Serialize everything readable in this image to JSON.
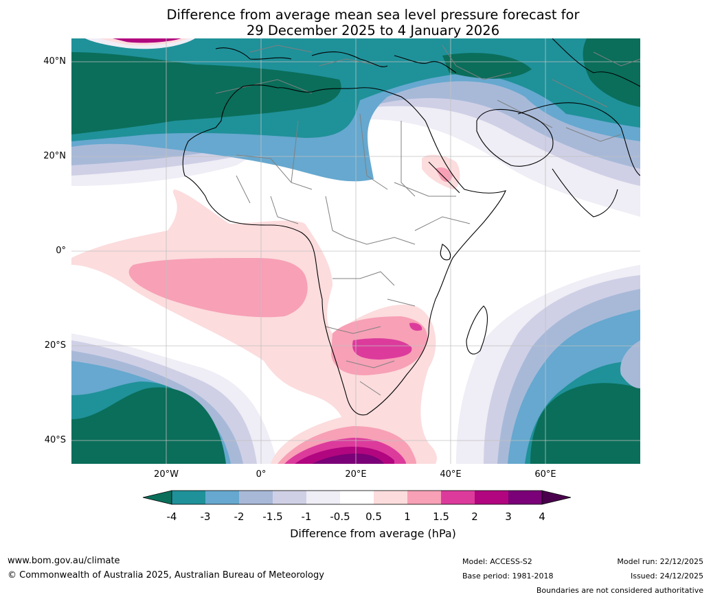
{
  "title": {
    "line1": "Difference from average mean sea level pressure forecast for",
    "line2": "29 December 2025 to 4 January 2026"
  },
  "map": {
    "lat_labels": [
      "40°N",
      "20°N",
      "0°",
      "20°S",
      "40°S"
    ],
    "lon_labels": [
      "20°W",
      "0°",
      "20°E",
      "40°E",
      "60°E"
    ],
    "colors": {
      "n4": "#0a6e5a",
      "n3": "#1f9199",
      "n2": "#66a8cf",
      "n15": "#a8b9d8",
      "n1": "#cfd0e6",
      "n05": "#efedf5",
      "z": "#ffffff",
      "p05": "#fcdcdd",
      "p1": "#f7a0b6",
      "p15": "#dc3b9c",
      "p2": "#b1067f",
      "p3": "#7a0177",
      "p4": "#4a004d",
      "coast": "#000000",
      "border": "#808080",
      "grid": "#c0c0c0"
    }
  },
  "colorbar": {
    "ticks": [
      "-4",
      "-3",
      "-2",
      "-1.5",
      "-1",
      "-0.5",
      "0.5",
      "1",
      "1.5",
      "2",
      "3",
      "4"
    ],
    "colors": [
      "#0a6e5a",
      "#1f9199",
      "#66a8cf",
      "#a8b9d8",
      "#cfd0e6",
      "#efedf5",
      "#ffffff",
      "#fcdcdd",
      "#f7a0b6",
      "#dc3b9c",
      "#b1067f",
      "#7a0177",
      "#4a004d"
    ],
    "label": "Difference from average (hPa)"
  },
  "footer": {
    "website": "www.bom.gov.au/climate",
    "copyright": "© Commonwealth of Australia 2025, Australian Bureau of Meteorology",
    "model": "Model: ACCESS-S2",
    "base_period": "Base period: 1981-2018",
    "model_run": "Model run: 22/12/2025",
    "issued": "Issued: 24/12/2025",
    "disclaimer": "Boundaries are not considered authoritative"
  }
}
